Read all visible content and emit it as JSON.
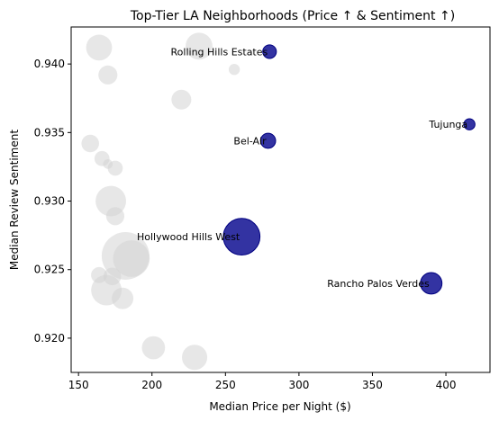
{
  "chart_data": {
    "type": "scatter",
    "title": "Top-Tier LA Neighborhoods (Price ↑ & Sentiment ↑)",
    "xlabel": "Median Price per Night ($)",
    "ylabel": "Median Review Sentiment",
    "xlim": [
      145,
      430
    ],
    "ylim": [
      0.9175,
      0.9427
    ],
    "xticks": [
      150,
      200,
      250,
      300,
      350,
      400
    ],
    "yticks": [
      0.92,
      0.925,
      0.93,
      0.935,
      0.94
    ],
    "ytick_labels": [
      "0.920",
      "0.925",
      "0.930",
      "0.935",
      "0.940"
    ],
    "grid": false,
    "colors": {
      "background_points": "#d3d3d3",
      "highlight_points": "#00008b",
      "highlight_edge": "#000080"
    },
    "background_points": [
      {
        "x": 164,
        "y": 0.9412,
        "size": 650
      },
      {
        "x": 232,
        "y": 0.9413,
        "size": 700
      },
      {
        "x": 170,
        "y": 0.9392,
        "size": 350
      },
      {
        "x": 256,
        "y": 0.9396,
        "size": 120
      },
      {
        "x": 220,
        "y": 0.9374,
        "size": 380
      },
      {
        "x": 158,
        "y": 0.9342,
        "size": 300
      },
      {
        "x": 166,
        "y": 0.9331,
        "size": 220
      },
      {
        "x": 170,
        "y": 0.9327,
        "size": 90
      },
      {
        "x": 175,
        "y": 0.9324,
        "size": 220
      },
      {
        "x": 172,
        "y": 0.93,
        "size": 900
      },
      {
        "x": 175,
        "y": 0.9289,
        "size": 320
      },
      {
        "x": 182,
        "y": 0.926,
        "size": 2200
      },
      {
        "x": 186,
        "y": 0.9258,
        "size": 1300
      },
      {
        "x": 164,
        "y": 0.9246,
        "size": 250
      },
      {
        "x": 173,
        "y": 0.9245,
        "size": 300
      },
      {
        "x": 169,
        "y": 0.9235,
        "size": 900
      },
      {
        "x": 180,
        "y": 0.9229,
        "size": 450
      },
      {
        "x": 201,
        "y": 0.9193,
        "size": 520
      },
      {
        "x": 229,
        "y": 0.9186,
        "size": 620
      }
    ],
    "highlight_points": [
      {
        "name": "Rolling Hills Estates",
        "x": 280,
        "y": 0.9409,
        "size": 180
      },
      {
        "name": "Tujunga",
        "x": 416,
        "y": 0.9356,
        "size": 120
      },
      {
        "name": "Bel-Air",
        "x": 279,
        "y": 0.9344,
        "size": 220
      },
      {
        "name": "Hollywood Hills West",
        "x": 261,
        "y": 0.9274,
        "size": 1300
      },
      {
        "name": "Rancho Palos Verdes",
        "x": 390,
        "y": 0.924,
        "size": 450
      }
    ]
  }
}
